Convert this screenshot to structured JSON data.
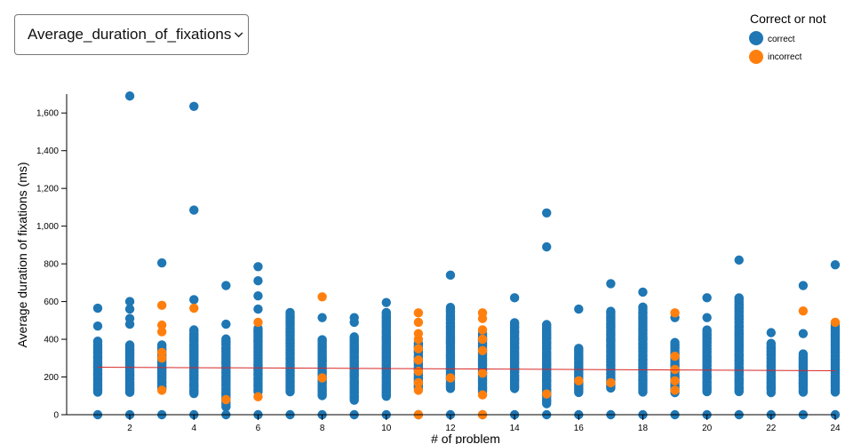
{
  "controls": {
    "metric_select": {
      "selected": "Average_duration_of_fixations"
    }
  },
  "colors": {
    "correct": "#1f77b4",
    "incorrect": "#ff7f0e",
    "trend": "#d62728",
    "axis": "#000000"
  },
  "chart_data": {
    "type": "scatter",
    "title": "",
    "xlabel": "# of problem",
    "ylabel": "Average duration of fixations (ms)",
    "xlim": [
      0.5,
      24
    ],
    "ylim": [
      0,
      1700
    ],
    "x_ticks": [
      2,
      4,
      6,
      8,
      10,
      12,
      14,
      16,
      18,
      20,
      22,
      24
    ],
    "y_ticks": [
      0,
      200,
      400,
      600,
      800,
      1000,
      1200,
      1400,
      1600
    ],
    "y_tick_labels": [
      "0",
      "200",
      "400",
      "600",
      "800",
      "1,000",
      "1,200",
      "1,400",
      "1,600"
    ],
    "grid": false,
    "legend": {
      "title": "Correct or not",
      "placement": "top-right",
      "entries": [
        "correct",
        "incorrect"
      ]
    },
    "trend_line": {
      "x": [
        1,
        24
      ],
      "y": [
        252,
        233
      ]
    },
    "series": [
      {
        "name": "correct",
        "color": "#1f77b4",
        "groups": [
          {
            "x": 1,
            "min": 120,
            "max": 390,
            "outliers": [
              0,
              470,
              565
            ]
          },
          {
            "x": 2,
            "min": 120,
            "max": 370,
            "outliers": [
              0,
              480,
              510,
              560,
              600,
              1690
            ]
          },
          {
            "x": 3,
            "min": 140,
            "max": 370,
            "outliers": [
              0,
              805
            ]
          },
          {
            "x": 4,
            "min": 110,
            "max": 450,
            "outliers": [
              0,
              610,
              1085,
              1635
            ]
          },
          {
            "x": 5,
            "min": 40,
            "max": 400,
            "outliers": [
              0,
              480,
              685
            ]
          },
          {
            "x": 6,
            "min": 120,
            "max": 460,
            "outliers": [
              0,
              560,
              630,
              710,
              785
            ]
          },
          {
            "x": 7,
            "min": 120,
            "max": 540,
            "outliers": [
              0
            ]
          },
          {
            "x": 8,
            "min": 100,
            "max": 400,
            "outliers": [
              0,
              515
            ]
          },
          {
            "x": 9,
            "min": 80,
            "max": 410,
            "outliers": [
              0,
              490,
              515
            ]
          },
          {
            "x": 10,
            "min": 100,
            "max": 540,
            "outliers": [
              0,
              595
            ]
          },
          {
            "x": 11,
            "min": 140,
            "max": 380,
            "outliers": [
              0
            ]
          },
          {
            "x": 12,
            "min": 140,
            "max": 570,
            "outliers": [
              0,
              740
            ]
          },
          {
            "x": 13,
            "min": 120,
            "max": 430,
            "outliers": [
              0
            ]
          },
          {
            "x": 14,
            "min": 140,
            "max": 490,
            "outliers": [
              0,
              620
            ]
          },
          {
            "x": 15,
            "min": 60,
            "max": 480,
            "outliers": [
              0,
              890,
              1070
            ]
          },
          {
            "x": 16,
            "min": 120,
            "max": 350,
            "outliers": [
              0,
              560
            ]
          },
          {
            "x": 17,
            "min": 140,
            "max": 550,
            "outliers": [
              0,
              695
            ]
          },
          {
            "x": 18,
            "min": 120,
            "max": 570,
            "outliers": [
              0,
              650
            ]
          },
          {
            "x": 19,
            "min": 120,
            "max": 380,
            "outliers": [
              0,
              515
            ]
          },
          {
            "x": 20,
            "min": 120,
            "max": 450,
            "outliers": [
              0,
              515,
              620
            ]
          },
          {
            "x": 21,
            "min": 120,
            "max": 620,
            "outliers": [
              0,
              820
            ]
          },
          {
            "x": 22,
            "min": 120,
            "max": 380,
            "outliers": [
              0,
              435
            ]
          },
          {
            "x": 23,
            "min": 120,
            "max": 320,
            "outliers": [
              0,
              430,
              685
            ]
          },
          {
            "x": 24,
            "min": 120,
            "max": 480,
            "outliers": [
              0,
              795
            ]
          }
        ]
      },
      {
        "name": "incorrect",
        "color": "#ff7f0e",
        "points": [
          {
            "x": 3,
            "y": [
              130,
              300,
              330,
              440,
              475,
              580
            ]
          },
          {
            "x": 4,
            "y": [
              565
            ]
          },
          {
            "x": 5,
            "y": [
              80
            ]
          },
          {
            "x": 6,
            "y": [
              95,
              490
            ]
          },
          {
            "x": 8,
            "y": [
              195,
              625
            ]
          },
          {
            "x": 11,
            "y": [
              0,
              130,
              170,
              230,
              290,
              350,
              400,
              430,
              490,
              540
            ]
          },
          {
            "x": 12,
            "y": [
              195
            ]
          },
          {
            "x": 13,
            "y": [
              0,
              105,
              220,
              340,
              400,
              450,
              510,
              540
            ]
          },
          {
            "x": 15,
            "y": [
              110
            ]
          },
          {
            "x": 16,
            "y": [
              180
            ]
          },
          {
            "x": 17,
            "y": [
              170
            ]
          },
          {
            "x": 19,
            "y": [
              130,
              180,
              240,
              310,
              540
            ]
          },
          {
            "x": 23,
            "y": [
              550
            ]
          },
          {
            "x": 24,
            "y": [
              490
            ]
          }
        ]
      }
    ]
  }
}
